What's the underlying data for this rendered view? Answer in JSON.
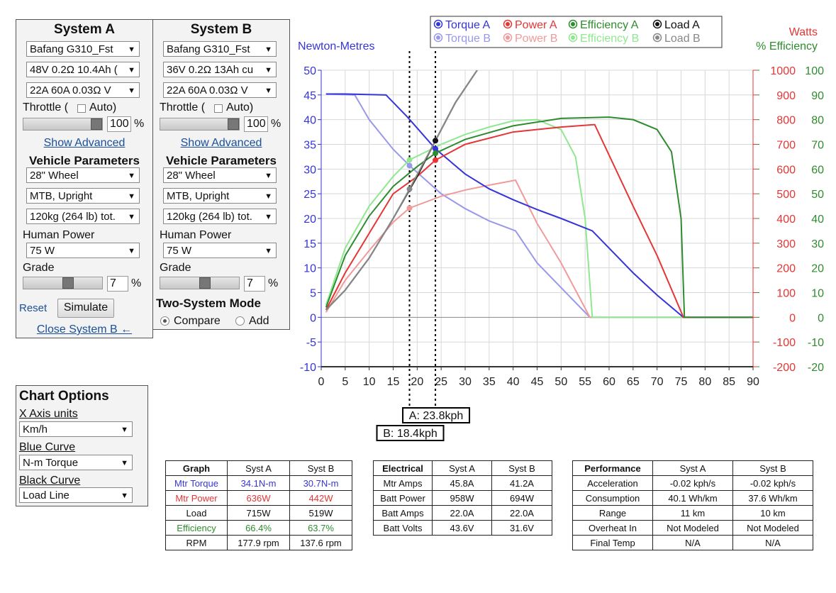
{
  "system_a": {
    "title": "System A",
    "motor": "Bafang G310_Fst",
    "battery": "48V 0.2Ω 10.4Ah (",
    "controller": "22A 60A 0.03Ω V",
    "throttle_label": "Throttle (",
    "auto_label": "Auto)",
    "throttle": 100,
    "throttle_unit": "%",
    "show_advanced": "Show Advanced",
    "vehicle_heading": "Vehicle Parameters",
    "wheel": "28\"  Wheel",
    "bike": "MTB, Upright",
    "mass": "120kg (264 lb) tot.",
    "human_power_label": "Human Power",
    "human_power": "75 W",
    "grade_label": "Grade",
    "grade": 7,
    "grade_unit": "%",
    "reset": "Reset",
    "simulate": "Simulate",
    "close": "Close System B ←"
  },
  "system_b": {
    "title": "System B",
    "motor": "Bafang G310_Fst",
    "battery": "36V 0.2Ω 13Ah cu",
    "controller": "22A 60A 0.03Ω V",
    "throttle_label": "Throttle (",
    "auto_label": "Auto)",
    "throttle": 100,
    "throttle_unit": "%",
    "show_advanced": "Show Advanced",
    "vehicle_heading": "Vehicle Parameters",
    "wheel": "28\"  Wheel",
    "bike": "MTB, Upright",
    "mass": "120kg (264 lb) tot.",
    "human_power_label": "Human Power",
    "human_power": "75 W",
    "grade_label": "Grade",
    "grade": 7,
    "grade_unit": "%",
    "mode_heading": "Two-System Mode",
    "compare": "Compare",
    "add": "Add"
  },
  "chart_options": {
    "title": "Chart Options",
    "x_axis_label": "X Axis units",
    "x_axis": "Km/h",
    "blue_label": "Blue Curve",
    "blue": "N-m Torque",
    "black_label": "Black Curve",
    "black": "Load Line"
  },
  "chart": {
    "type": "line",
    "y_label": "Newton-Metres",
    "y2_label": "Watts",
    "y3_label": "% Efficiency",
    "xlim": [
      0,
      90
    ],
    "xticks": [
      0,
      5,
      10,
      15,
      20,
      25,
      30,
      35,
      40,
      45,
      50,
      55,
      60,
      65,
      70,
      75,
      80,
      85,
      90
    ],
    "ylim": [
      -10,
      50
    ],
    "yticks": [
      -10,
      -5,
      0,
      5,
      10,
      15,
      20,
      25,
      30,
      35,
      40,
      45,
      50
    ],
    "y2lim": [
      -200,
      1000
    ],
    "y2ticks": [
      -200,
      -100,
      0,
      100,
      200,
      300,
      400,
      500,
      600,
      700,
      800,
      900,
      1000
    ],
    "y3lim": [
      -20,
      100
    ],
    "y3ticks": [
      -20,
      -10,
      0,
      10,
      20,
      30,
      40,
      50,
      60,
      70,
      80,
      90,
      100
    ],
    "grid": true,
    "markers": [
      {
        "label": "A: 23.8kph",
        "x": 23.8
      },
      {
        "label": "B: 18.4kph",
        "x": 18.4
      }
    ],
    "series": [
      {
        "name": "Torque A",
        "color": "#3535d8",
        "axis": "y",
        "x": [
          1,
          5,
          13.5,
          18,
          23.8,
          30,
          35,
          40,
          45,
          50,
          56.5,
          60,
          65,
          70,
          75.5,
          90
        ],
        "values": [
          45.2,
          45.2,
          45,
          40.5,
          34.1,
          29,
          26,
          23.8,
          21.8,
          20,
          17.5,
          14,
          9,
          4.5,
          0,
          0
        ],
        "cursor": {
          "x": 23.8,
          "y": 34.1
        }
      },
      {
        "name": "Power A",
        "color": "#e53535",
        "axis": "y2",
        "x": [
          1,
          5,
          10,
          15,
          20,
          23.8,
          30,
          40,
          50,
          57,
          65,
          70,
          75.5,
          90
        ],
        "values": [
          30,
          180,
          340,
          500,
          570,
          636,
          700,
          750,
          770,
          780,
          450,
          250,
          0,
          0
        ],
        "cursor": {
          "x": 23.8,
          "y": 636
        }
      },
      {
        "name": "Efficiency A",
        "color": "#2e8b2e",
        "axis": "y3",
        "x": [
          1,
          5,
          10,
          15,
          20,
          23.8,
          30,
          40,
          50,
          60,
          65,
          70,
          73,
          75,
          75.7,
          90
        ],
        "values": [
          4,
          25,
          41,
          53,
          61,
          66.4,
          72,
          77.5,
          80.5,
          81,
          80,
          76,
          67,
          40,
          0,
          0
        ],
        "cursor": {
          "x": 23.8,
          "y": 66.4
        }
      },
      {
        "name": "Load A",
        "color": "#111111",
        "axis": "y2",
        "x": [
          1,
          5,
          10,
          15,
          20,
          23.8,
          28,
          32.5
        ],
        "values": [
          30,
          110,
          240,
          400,
          570,
          715,
          870,
          1000
        ],
        "cursor": {
          "x": 23.8,
          "y": 715
        }
      },
      {
        "name": "Torque B",
        "color": "#9898ec",
        "axis": "y",
        "x": [
          1,
          7,
          10,
          15,
          18.4,
          25,
          30,
          35,
          40.5,
          45,
          50,
          56,
          90
        ],
        "values": [
          45.2,
          45,
          40,
          34,
          30.7,
          25,
          22,
          19.5,
          17.5,
          11,
          6,
          0,
          0
        ],
        "cursor": {
          "x": 18.4,
          "y": 30.7
        }
      },
      {
        "name": "Power B",
        "color": "#f19a9a",
        "axis": "y2",
        "x": [
          1,
          5,
          10,
          15,
          18.4,
          25,
          30,
          35,
          40.5,
          45,
          50,
          56,
          90
        ],
        "values": [
          20,
          150,
          270,
          385,
          442,
          490,
          515,
          535,
          555,
          380,
          220,
          0,
          0
        ],
        "cursor": {
          "x": 18.4,
          "y": 442
        }
      },
      {
        "name": "Efficiency B",
        "color": "#8fe88f",
        "axis": "y3",
        "x": [
          1,
          5,
          10,
          15,
          18.4,
          25,
          30,
          35,
          40,
          45,
          50,
          53,
          55,
          56.5,
          90
        ],
        "values": [
          5,
          28,
          45,
          57,
          63.7,
          70,
          74,
          77,
          79.5,
          80,
          76,
          65,
          40,
          0,
          0
        ],
        "cursor": {
          "x": 18.4,
          "y": 63.7
        }
      },
      {
        "name": "Load B",
        "color": "#888888",
        "axis": "y2",
        "x": [
          1,
          5,
          10,
          15,
          18.4,
          23.8,
          28,
          32.5
        ],
        "values": [
          30,
          110,
          240,
          400,
          519,
          715,
          870,
          1000
        ],
        "cursor": {
          "x": 18.4,
          "y": 519
        }
      }
    ]
  },
  "graph_table": {
    "header": [
      "Graph",
      "Syst A",
      "Syst B"
    ],
    "rows": [
      [
        "Mtr Torque",
        "34.1N-m",
        "30.7N-m"
      ],
      [
        "Mtr Power",
        "636W",
        "442W"
      ],
      [
        "Load",
        "715W",
        "519W"
      ],
      [
        "Efficiency",
        "66.4%",
        "63.7%"
      ],
      [
        "RPM",
        "177.9 rpm",
        "137.6 rpm"
      ]
    ]
  },
  "electrical_table": {
    "header": [
      "Electrical",
      "Syst A",
      "Syst B"
    ],
    "rows": [
      [
        "Mtr Amps",
        "45.8A",
        "41.2A"
      ],
      [
        "Batt Power",
        "958W",
        "694W"
      ],
      [
        "Batt Amps",
        "22.0A",
        "22.0A"
      ],
      [
        "Batt Volts",
        "43.6V",
        "31.6V"
      ]
    ]
  },
  "performance_table": {
    "header": [
      "Performance",
      "Syst A",
      "Syst B"
    ],
    "rows": [
      [
        "Acceleration",
        "-0.02 kph/s",
        "-0.02 kph/s"
      ],
      [
        "Consumption",
        "40.1 Wh/km",
        "37.6 Wh/km"
      ],
      [
        "Range",
        "11 km",
        "10 km"
      ],
      [
        "Overheat In",
        "Not Modeled",
        "Not Modeled"
      ],
      [
        "Final Temp",
        "N/A",
        "N/A"
      ]
    ]
  }
}
